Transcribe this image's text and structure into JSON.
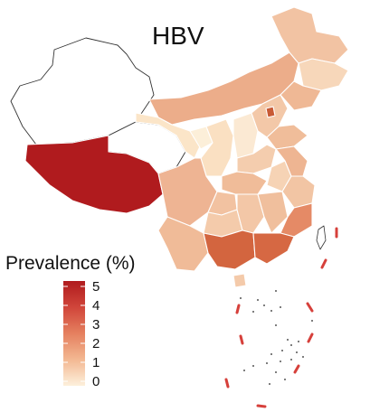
{
  "title": "HBV",
  "legend": {
    "title": "Prevalence (%)",
    "ticks": [
      "5",
      "4",
      "3",
      "2",
      "1",
      "0"
    ],
    "colors": [
      "#fdf0dc",
      "#f6c7a4",
      "#ec9b78",
      "#e06d4f",
      "#c93c31",
      "#b01b1e"
    ]
  },
  "colors": {
    "no_data": "#ffffff",
    "highest": "#b01b1e",
    "dash_line": "#d6403b"
  }
}
